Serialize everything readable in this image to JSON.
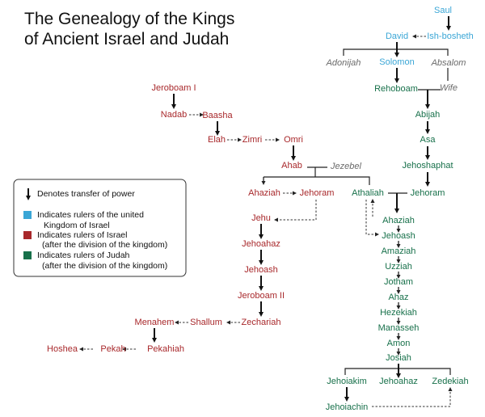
{
  "title": [
    "The Genealogy of the Kings",
    "of Ancient Israel and Judah"
  ],
  "colors": {
    "united": "#3aa6d6",
    "israel": "#a8282b",
    "judah": "#17704a",
    "other": "#6a6a6a"
  },
  "legend": {
    "arrow": "Denotes transfer of power",
    "united": [
      "Indicates rulers of the united",
      "Kingdom of Israel"
    ],
    "israel": [
      "Indicates rulers of Israel",
      "(after the division of the kingdom)"
    ],
    "judah": [
      "Indicates rulers of Judah",
      "(after the division of the kingdom)"
    ]
  },
  "united": {
    "saul": "Saul",
    "david": "David",
    "ishbosheth": "Ish-bosheth",
    "solomon": "Solomon"
  },
  "others": {
    "adonijah": "Adonijah",
    "absalom": "Absalom",
    "wife": "Wife",
    "jezebel": "Jezebel"
  },
  "judah": {
    "rehoboam": "Rehoboam",
    "abijah": "Abijah",
    "asa": "Asa",
    "jehoshaphat": "Jehoshaphat",
    "jehoram": "Jehoram",
    "athaliah": "Athaliah",
    "ahaziah": "Ahaziah",
    "jehoash": "Jehoash",
    "amaziah": "Amaziah",
    "uzziah": "Uzziah",
    "jotham": "Jotham",
    "ahaz": "Ahaz",
    "hezekiah": "Hezekiah",
    "manasseh": "Manasseh",
    "amon": "Amon",
    "josiah": "Josiah",
    "jehoiakim": "Jehoiakim",
    "jehoahaz": "Jehoahaz",
    "zedekiah": "Zedekiah",
    "jehoiachin": "Jehoiachin"
  },
  "israel": {
    "jeroboam1": "Jeroboam I",
    "nadab": "Nadab",
    "baasha": "Baasha",
    "elah": "Elah",
    "zimri": "Zimri",
    "omri": "Omri",
    "ahab": "Ahab",
    "ahaziah": "Ahaziah",
    "jehoram": "Jehoram",
    "jehu": "Jehu",
    "jehoahaz": "Jehoahaz",
    "jehoash": "Jehoash",
    "jeroboam2": "Jeroboam II",
    "zechariah": "Zechariah",
    "shallum": "Shallum",
    "menahem": "Menahem",
    "pekahiah": "Pekahiah",
    "pekah": "Pekah",
    "hoshea": "Hoshea"
  }
}
